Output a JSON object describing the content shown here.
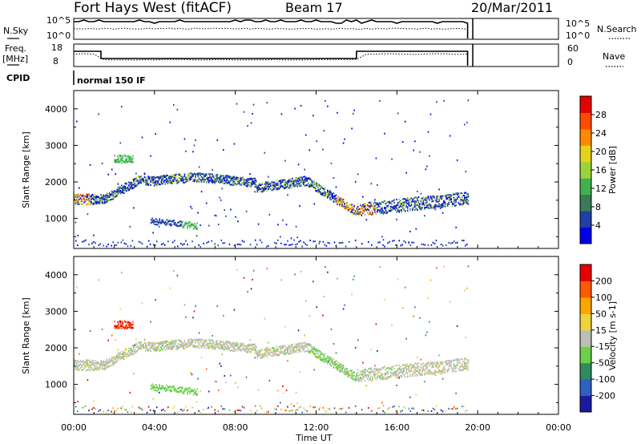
{
  "header": {
    "station": "Fort Hays West (fitACF)",
    "beam": "Beam 17",
    "date": "20/Mar/2011"
  },
  "top_panels": {
    "nsky_label": "N.Sky",
    "nsky_ticks": [
      "10^5",
      "10^0"
    ],
    "nsearch_label": "N.Search",
    "nsearch_ticks": [
      "10^5",
      "10^0"
    ],
    "freq_label_1": "Freq.",
    "freq_label_2": "[MHz]",
    "freq_ticks": [
      "18",
      "8"
    ],
    "nave_label": "Nave",
    "nave_ticks": [
      "60",
      "0"
    ],
    "cpid_label": "CPID",
    "cpid_value": "normal 150 IF"
  },
  "chart_data": [
    {
      "type": "heatmap",
      "name": "power",
      "ylabel": "Slant Range [km]",
      "yticks": [
        "4000",
        "3000",
        "2000",
        "1000"
      ],
      "ylim": [
        180,
        4500
      ],
      "xlabel": "Time UT",
      "xticks": [
        "00:00",
        "04:00",
        "08:00",
        "12:00",
        "16:00",
        "20:00",
        "00:00"
      ],
      "colorbar_label": "Power [dB]",
      "colorbar_ticks": [
        "28",
        "24",
        "20",
        "16",
        "12",
        "8",
        "4"
      ],
      "colorbar_colors": [
        "#0000e6",
        "#1f3ea8",
        "#3a7a55",
        "#3fb24e",
        "#9bd33a",
        "#e6d21e",
        "#ff8a00",
        "#ff4a00",
        "#e60000"
      ]
    },
    {
      "type": "heatmap",
      "name": "velocity",
      "ylabel": "Slant Range [km]",
      "yticks": [
        "4000",
        "3000",
        "2000",
        "1000"
      ],
      "ylim": [
        180,
        4500
      ],
      "xlabel": "Time UT",
      "xticks": [
        "00:00",
        "04:00",
        "08:00",
        "12:00",
        "16:00",
        "20:00",
        "00:00"
      ],
      "colorbar_label": "Velocity [m s-1]",
      "colorbar_ticks": [
        "200",
        "100",
        "50",
        "15",
        "-15",
        "-50",
        "-100",
        "-200"
      ],
      "colorbar_colors": [
        "#1a1aa0",
        "#2f5fc0",
        "#2f8a60",
        "#6cd04a",
        "#bebeb8",
        "#f0d23a",
        "#ffa500",
        "#ff5a00",
        "#e60000"
      ]
    }
  ],
  "x_axis_title": "Time UT"
}
